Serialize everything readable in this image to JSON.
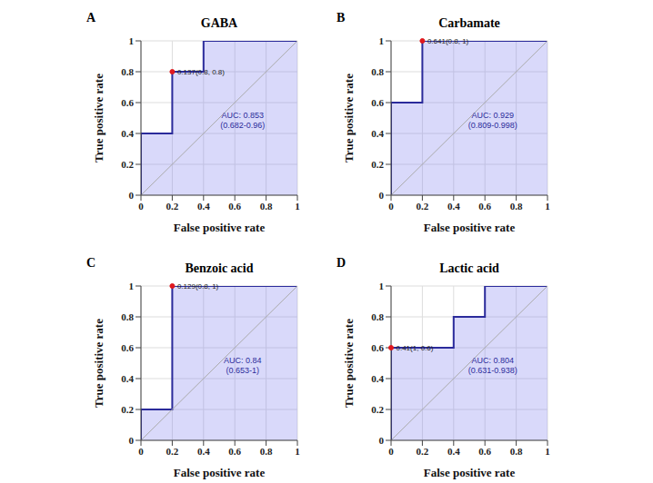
{
  "chart_data": [
    {
      "type": "line",
      "panel": "A",
      "title": "GABA",
      "xlabel": "False positive rate",
      "ylabel": "True positive rate",
      "x": [
        0,
        0,
        0.2,
        0.2,
        0.4,
        0.4,
        1
      ],
      "values": [
        0,
        0.4,
        0.4,
        0.8,
        0.8,
        1,
        1
      ],
      "xlim": [
        0,
        1
      ],
      "ylim": [
        0,
        1
      ],
      "xticks": [
        0,
        0.2,
        0.4,
        0.6,
        0.8,
        1
      ],
      "yticks": [
        0,
        0.2,
        0.4,
        0.6,
        0.8,
        1
      ],
      "grid": true,
      "color": "#2b2b9b",
      "cutoff": {
        "x": 0.2,
        "y": 0.8,
        "label": "0.137(0.8, 0.8)",
        "color": "#e0191e"
      },
      "auc": "AUC: 0.853",
      "auc_ci": "(0.682-0.96)"
    },
    {
      "type": "line",
      "panel": "B",
      "title": "Carbamate",
      "xlabel": "False positive rate",
      "ylabel": "True positive rate",
      "x": [
        0,
        0,
        0.2,
        0.2,
        1
      ],
      "values": [
        0,
        0.6,
        0.6,
        1,
        1
      ],
      "xlim": [
        0,
        1
      ],
      "ylim": [
        0,
        1
      ],
      "xticks": [
        0,
        0.2,
        0.4,
        0.6,
        0.8,
        1
      ],
      "yticks": [
        0,
        0.2,
        0.4,
        0.6,
        0.8,
        1
      ],
      "grid": true,
      "color": "#2b2b9b",
      "cutoff": {
        "x": 0.2,
        "y": 1,
        "label": "0.641(0.8, 1)",
        "color": "#e0191e"
      },
      "auc": "AUC: 0.929",
      "auc_ci": "(0.809-0.998)"
    },
    {
      "type": "line",
      "panel": "C",
      "title": "Benzoic acid",
      "xlabel": "False positive rate",
      "ylabel": "True positive rate",
      "x": [
        0,
        0,
        0.2,
        0.2,
        1
      ],
      "values": [
        0,
        0.2,
        0.2,
        1,
        1
      ],
      "xlim": [
        0,
        1
      ],
      "ylim": [
        0,
        1
      ],
      "xticks": [
        0,
        0.2,
        0.4,
        0.6,
        0.8,
        1
      ],
      "yticks": [
        0,
        0.2,
        0.4,
        0.6,
        0.8,
        1
      ],
      "grid": true,
      "color": "#2b2b9b",
      "cutoff": {
        "x": 0.2,
        "y": 1,
        "label": "0.129(0.8, 1)",
        "color": "#e0191e"
      },
      "auc": "AUC: 0.84",
      "auc_ci": "(0.653-1)"
    },
    {
      "type": "line",
      "panel": "D",
      "title": "Lactic acid",
      "xlabel": "False positive rate",
      "ylabel": "True positive rate",
      "x": [
        0,
        0,
        0.4,
        0.4,
        0.6,
        0.6,
        1
      ],
      "values": [
        0,
        0.6,
        0.6,
        0.8,
        0.8,
        1,
        1
      ],
      "xlim": [
        0,
        1
      ],
      "ylim": [
        0,
        1
      ],
      "xticks": [
        0,
        0.2,
        0.4,
        0.6,
        0.8,
        1
      ],
      "yticks": [
        0,
        0.2,
        0.4,
        0.6,
        0.8,
        1
      ],
      "grid": true,
      "color": "#2b2b9b",
      "cutoff": {
        "x": 0,
        "y": 0.6,
        "label": "0.41(1, 0.6)",
        "color": "#e0191e"
      },
      "auc": "AUC: 0.804",
      "auc_ci": "(0.631-0.938)"
    }
  ]
}
